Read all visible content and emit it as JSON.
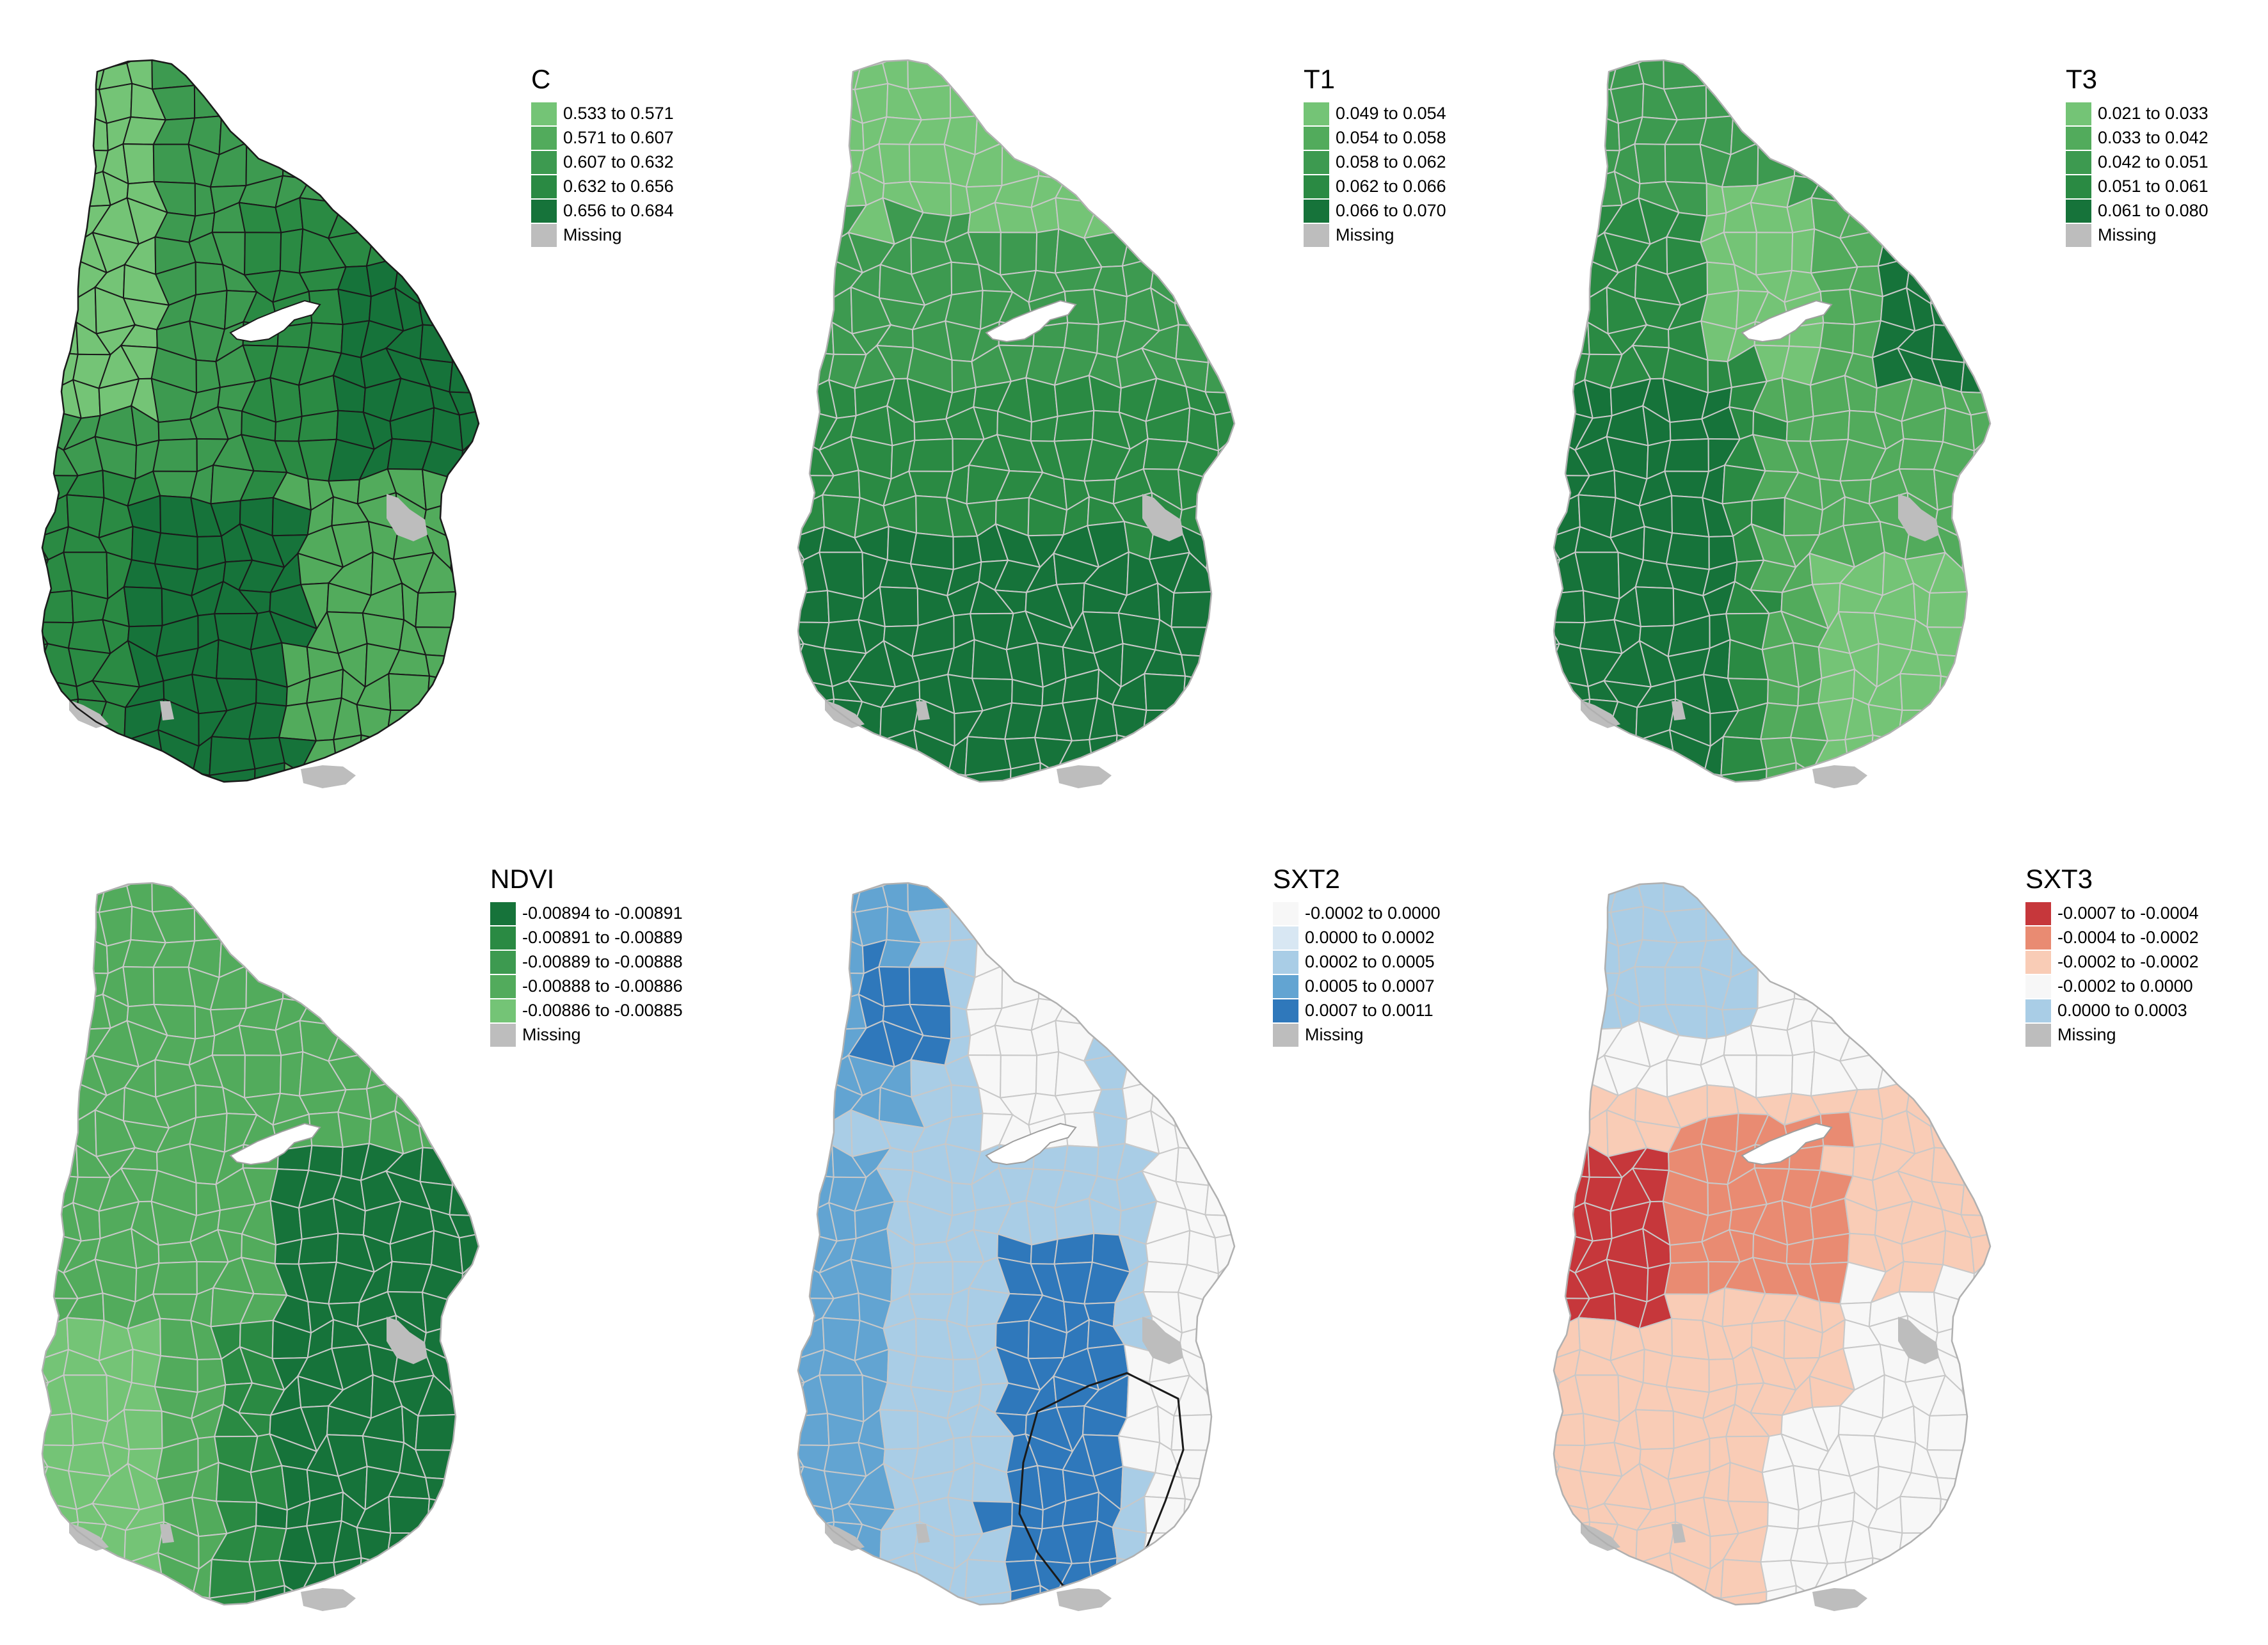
{
  "figure": {
    "panels": [
      {
        "id": "C",
        "title": "C",
        "palette": "greens",
        "boundary_style": "dark",
        "legend": [
          {
            "label": "0.533 to 0.571",
            "color": "#74c476"
          },
          {
            "label": "0.571 to 0.607",
            "color": "#52ab5c"
          },
          {
            "label": "0.607 to 0.632",
            "color": "#3d9a50"
          },
          {
            "label": "0.632 to 0.656",
            "color": "#2a8a43"
          },
          {
            "label": "0.656 to 0.684",
            "color": "#16733a"
          },
          {
            "label": "Missing",
            "color": "#bdbdbd"
          }
        ]
      },
      {
        "id": "T1",
        "title": "T1",
        "palette": "greens",
        "boundary_style": "light",
        "legend": [
          {
            "label": "0.049 to 0.054",
            "color": "#74c476"
          },
          {
            "label": "0.054 to 0.058",
            "color": "#52ab5c"
          },
          {
            "label": "0.058 to 0.062",
            "color": "#3d9a50"
          },
          {
            "label": "0.062 to 0.066",
            "color": "#2a8a43"
          },
          {
            "label": "0.066 to 0.070",
            "color": "#16733a"
          },
          {
            "label": "Missing",
            "color": "#bdbdbd"
          }
        ]
      },
      {
        "id": "T3",
        "title": "T3",
        "palette": "greens",
        "boundary_style": "light",
        "legend": [
          {
            "label": "0.021 to 0.033",
            "color": "#74c476"
          },
          {
            "label": "0.033 to 0.042",
            "color": "#52ab5c"
          },
          {
            "label": "0.042 to 0.051",
            "color": "#3d9a50"
          },
          {
            "label": "0.051 to 0.061",
            "color": "#2a8a43"
          },
          {
            "label": "0.061 to 0.080",
            "color": "#16733a"
          },
          {
            "label": "Missing",
            "color": "#bdbdbd"
          }
        ]
      },
      {
        "id": "NDVI",
        "title": "NDVI",
        "palette": "greens",
        "boundary_style": "light",
        "legend": [
          {
            "label": "-0.00894 to -0.00891",
            "color": "#16733a"
          },
          {
            "label": "-0.00891 to -0.00889",
            "color": "#2a8a43"
          },
          {
            "label": "-0.00889 to -0.00888",
            "color": "#3d9a50"
          },
          {
            "label": "-0.00888 to -0.00886",
            "color": "#52ab5c"
          },
          {
            "label": "-0.00886 to -0.00885",
            "color": "#74c476"
          },
          {
            "label": "Missing",
            "color": "#bdbdbd"
          }
        ]
      },
      {
        "id": "SXT2",
        "title": "SXT2",
        "palette": "blues",
        "boundary_style": "light",
        "legend": [
          {
            "label": "-0.0002 to 0.0000",
            "color": "#f7f7f7"
          },
          {
            "label": "0.0000 to 0.0002",
            "color": "#d8e7f3"
          },
          {
            "label": "0.0002 to 0.0005",
            "color": "#a9cde6"
          },
          {
            "label": "0.0005 to 0.0007",
            "color": "#62a4d2"
          },
          {
            "label": "0.0007 to 0.0011",
            "color": "#2f78bb"
          },
          {
            "label": "Missing",
            "color": "#bdbdbd"
          }
        ]
      },
      {
        "id": "SXT3",
        "title": "SXT3",
        "palette": "reds",
        "boundary_style": "light",
        "legend": [
          {
            "label": "-0.0007 to -0.0004",
            "color": "#c6373b"
          },
          {
            "label": "-0.0004 to -0.0002",
            "color": "#e98b72"
          },
          {
            "label": "-0.0002 to -0.0002",
            "color": "#f9ccb6"
          },
          {
            "label": "-0.0002 to 0.0000",
            "color": "#f7f7f7"
          },
          {
            "label": "0.0000 to 0.0003",
            "color": "#a9cde6"
          },
          {
            "label": "Missing",
            "color": "#bdbdbd"
          }
        ]
      }
    ]
  }
}
